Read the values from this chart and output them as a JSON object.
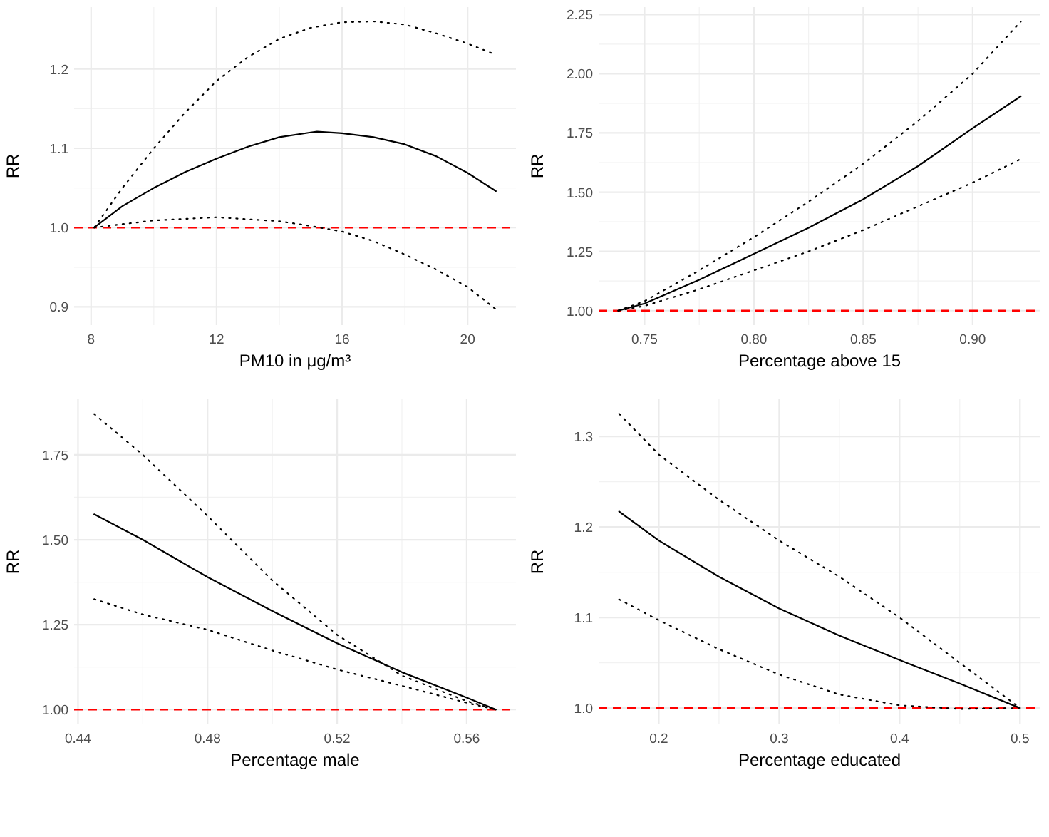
{
  "chart_data": [
    {
      "type": "line",
      "xlabel": "PM10 in μg/m³",
      "ylabel": "RR",
      "xlim": [
        7.46,
        21.54
      ],
      "ylim": [
        0.877,
        1.278
      ],
      "xticks": [
        8,
        12,
        16,
        20
      ],
      "yticks": [
        0.9,
        {
          "value": 1,
          "label": "1.0"
        },
        1.1,
        1.2
      ],
      "grid": true,
      "series": [
        {
          "color": "#000000",
          "line_style": "solid",
          "x": [
            8.1,
            9,
            10,
            11,
            12,
            13,
            14,
            15,
            15.2,
            16,
            17,
            18,
            19,
            20,
            20.9
          ],
          "values": [
            1.0,
            1.027,
            1.05,
            1.07,
            1.087,
            1.102,
            1.114,
            1.12,
            1.121,
            1.119,
            1.114,
            1.105,
            1.09,
            1.069,
            1.046
          ]
        },
        {
          "color": "#000000",
          "line_style": "dotted",
          "x": [
            8.1,
            9,
            10,
            11,
            12,
            13,
            14,
            15,
            16,
            17,
            18,
            19,
            20,
            20.9
          ],
          "values": [
            1.0,
            1.05,
            1.1,
            1.145,
            1.185,
            1.215,
            1.238,
            1.252,
            1.259,
            1.26,
            1.256,
            1.245,
            1.232,
            1.218
          ]
        },
        {
          "color": "#000000",
          "line_style": "dotted",
          "x": [
            8.1,
            10,
            12,
            14,
            15,
            16,
            17,
            18,
            19,
            20,
            20.9
          ],
          "values": [
            1.0,
            1.009,
            1.013,
            1.008,
            1.002,
            0.995,
            0.983,
            0.966,
            0.947,
            0.925,
            0.897
          ]
        }
      ],
      "ref_lines": [
        {
          "axis": "y",
          "value": 1,
          "color": "#ff0000",
          "line_style": "dashed"
        }
      ]
    },
    {
      "type": "line",
      "xlabel": "Percentage above 15",
      "ylabel": "RR",
      "xlim": [
        0.729,
        0.931
      ],
      "ylim": [
        0.939,
        2.281
      ],
      "xticks": [
        0.75,
        {
          "value": 0.8,
          "label": "0.80"
        },
        0.85,
        {
          "value": 0.9,
          "label": "0.90"
        }
      ],
      "yticks": [
        {
          "value": 1,
          "label": "1.00"
        },
        1.25,
        {
          "value": 1.5,
          "label": "1.50"
        },
        1.75,
        {
          "value": 2,
          "label": "2.00"
        },
        2.25
      ],
      "grid": true,
      "series": [
        {
          "color": "#000000",
          "line_style": "solid",
          "x": [
            0.738,
            0.75,
            0.775,
            0.8,
            0.825,
            0.85,
            0.875,
            0.9,
            0.922
          ],
          "values": [
            1.0,
            1.03,
            1.13,
            1.24,
            1.35,
            1.47,
            1.61,
            1.77,
            1.905
          ]
        },
        {
          "color": "#000000",
          "line_style": "dotted",
          "x": [
            0.738,
            0.75,
            0.775,
            0.8,
            0.825,
            0.85,
            0.875,
            0.9,
            0.922
          ],
          "values": [
            1.0,
            1.04,
            1.17,
            1.31,
            1.46,
            1.62,
            1.8,
            2.0,
            2.22
          ]
        },
        {
          "color": "#000000",
          "line_style": "dotted",
          "x": [
            0.738,
            0.75,
            0.775,
            0.8,
            0.825,
            0.85,
            0.875,
            0.9,
            0.922
          ],
          "values": [
            1.0,
            1.02,
            1.09,
            1.17,
            1.25,
            1.34,
            1.44,
            1.54,
            1.64
          ]
        }
      ],
      "ref_lines": [
        {
          "axis": "y",
          "value": 1,
          "color": "#ff0000",
          "line_style": "dashed"
        }
      ]
    },
    {
      "type": "line",
      "xlabel": "Percentage male",
      "ylabel": "RR",
      "xlim": [
        0.4388,
        0.5752
      ],
      "ylim": [
        0.9565,
        1.9135
      ],
      "xticks": [
        0.44,
        0.48,
        0.52,
        0.56
      ],
      "yticks": [
        {
          "value": 1,
          "label": "1.00"
        },
        1.25,
        {
          "value": 1.5,
          "label": "1.50"
        },
        1.75
      ],
      "grid": true,
      "series": [
        {
          "color": "#000000",
          "line_style": "solid",
          "x": [
            0.445,
            0.46,
            0.48,
            0.5,
            0.52,
            0.54,
            0.56,
            0.569
          ],
          "values": [
            1.575,
            1.5,
            1.39,
            1.29,
            1.195,
            1.11,
            1.035,
            1.0
          ]
        },
        {
          "color": "#000000",
          "line_style": "dotted",
          "x": [
            0.445,
            0.46,
            0.48,
            0.5,
            0.52,
            0.54,
            0.56,
            0.569
          ],
          "values": [
            1.87,
            1.75,
            1.57,
            1.38,
            1.22,
            1.1,
            1.025,
            1.0
          ]
        },
        {
          "color": "#000000",
          "line_style": "dotted",
          "x": [
            0.445,
            0.46,
            0.48,
            0.5,
            0.52,
            0.54,
            0.56,
            0.569
          ],
          "values": [
            1.325,
            1.28,
            1.235,
            1.174,
            1.118,
            1.07,
            1.02,
            1.0
          ]
        }
      ],
      "ref_lines": [
        {
          "axis": "y",
          "value": 1,
          "color": "#ff0000",
          "line_style": "dashed"
        }
      ]
    },
    {
      "type": "line",
      "xlabel": "Percentage educated",
      "ylabel": "RR",
      "xlim": [
        0.15,
        0.517
      ],
      "ylim": [
        0.982,
        1.341
      ],
      "xticks": [
        0.2,
        0.3,
        0.4,
        0.5
      ],
      "yticks": [
        {
          "value": 1,
          "label": "1.0"
        },
        1.1,
        1.2,
        1.3
      ],
      "grid": true,
      "series": [
        {
          "color": "#000000",
          "line_style": "solid",
          "x": [
            0.167,
            0.2,
            0.25,
            0.3,
            0.35,
            0.4,
            0.45,
            0.5
          ],
          "values": [
            1.217,
            1.185,
            1.145,
            1.11,
            1.08,
            1.053,
            1.027,
            1.0
          ]
        },
        {
          "color": "#000000",
          "line_style": "dotted",
          "x": [
            0.167,
            0.2,
            0.25,
            0.3,
            0.35,
            0.4,
            0.45,
            0.5
          ],
          "values": [
            1.325,
            1.28,
            1.23,
            1.185,
            1.145,
            1.1,
            1.05,
            1.0
          ]
        },
        {
          "color": "#000000",
          "line_style": "dotted",
          "x": [
            0.167,
            0.2,
            0.25,
            0.3,
            0.35,
            0.4,
            0.45,
            0.5
          ],
          "values": [
            1.12,
            1.097,
            1.065,
            1.037,
            1.015,
            1.003,
            0.999,
            1.0
          ]
        }
      ],
      "ref_lines": [
        {
          "axis": "y",
          "value": 1,
          "color": "#ff0000",
          "line_style": "dashed"
        }
      ]
    }
  ]
}
